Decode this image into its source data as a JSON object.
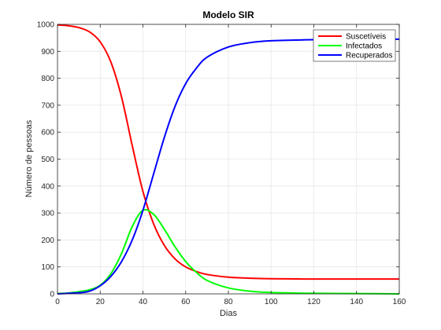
{
  "chart_data": {
    "type": "line",
    "title": "Modelo SIR",
    "xlabel": "Dias",
    "ylabel": "Número de pessoas",
    "xlim": [
      0,
      160
    ],
    "ylim": [
      0,
      1000
    ],
    "xticks": [
      0,
      20,
      40,
      60,
      80,
      100,
      120,
      140,
      160
    ],
    "yticks": [
      0,
      100,
      200,
      300,
      400,
      500,
      600,
      700,
      800,
      900,
      1000
    ],
    "grid": true,
    "legend_position": "top-right",
    "series": [
      {
        "name": "Suscetíveis",
        "color": "#ff0000",
        "x": [
          0,
          5,
          10,
          15,
          20,
          25,
          30,
          35,
          40,
          45,
          50,
          55,
          60,
          65,
          70,
          80,
          90,
          100,
          120,
          140,
          160
        ],
        "y": [
          998,
          995,
          988,
          972,
          935,
          860,
          730,
          550,
          380,
          260,
          180,
          130,
          100,
          83,
          72,
          62,
          58,
          56,
          55,
          55,
          55
        ]
      },
      {
        "name": "Infectados",
        "color": "#00ff00",
        "x": [
          0,
          5,
          10,
          15,
          20,
          25,
          30,
          35,
          40,
          45,
          50,
          55,
          60,
          65,
          70,
          80,
          90,
          100,
          120,
          140,
          160
        ],
        "y": [
          1,
          3,
          8,
          15,
          32,
          75,
          150,
          250,
          310,
          295,
          240,
          175,
          120,
          80,
          50,
          22,
          10,
          5,
          2,
          1,
          0
        ]
      },
      {
        "name": "Recuperados",
        "color": "#0000ff",
        "x": [
          0,
          5,
          10,
          15,
          20,
          25,
          30,
          35,
          40,
          45,
          50,
          55,
          60,
          65,
          70,
          80,
          90,
          100,
          120,
          140,
          160
        ],
        "y": [
          0,
          2,
          4,
          10,
          30,
          65,
          120,
          200,
          310,
          445,
          580,
          695,
          780,
          837,
          878,
          916,
          932,
          939,
          943,
          944,
          945
        ]
      }
    ]
  }
}
